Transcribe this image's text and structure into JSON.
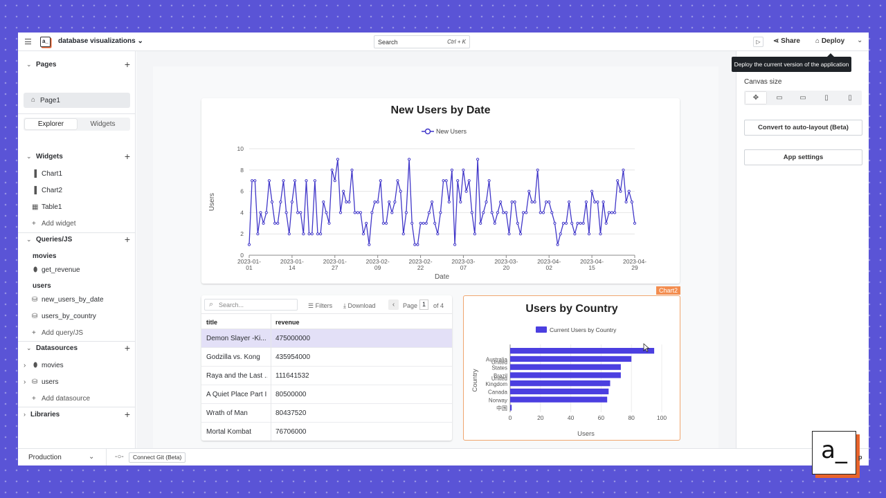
{
  "header": {
    "app_name": "database visualizations",
    "logo_text": "a_",
    "search_placeholder": "Search",
    "search_shortcut": "Ctrl + K",
    "share_label": "Share",
    "deploy_label": "Deploy"
  },
  "sidebar": {
    "pages_label": "Pages",
    "pages": [
      "Page1"
    ],
    "toggle": [
      "Explorer",
      "Widgets"
    ],
    "widgets_label": "Widgets",
    "widgets": [
      "Chart1",
      "Chart2",
      "Table1"
    ],
    "add_widget": "Add widget",
    "queries_label": "Queries/JS",
    "query_groups": [
      {
        "name": "movies",
        "items": [
          "get_revenue"
        ]
      },
      {
        "name": "users",
        "items": [
          "new_users_by_date",
          "users_by_country"
        ]
      }
    ],
    "add_query": "Add query/JS",
    "datasources_label": "Datasources",
    "datasources": [
      "movies",
      "users"
    ],
    "add_datasource": "Add datasource",
    "libraries_label": "Libraries"
  },
  "chart1": {
    "chart_data": {
      "type": "line",
      "title": "New Users by Date",
      "xlabel": "Date",
      "ylabel": "Users",
      "ylim": [
        0,
        10
      ],
      "yticks": [
        0,
        2,
        4,
        6,
        8,
        10
      ],
      "xtick_labels": [
        "2023-01-01",
        "2023-01-14",
        "2023-01-27",
        "2023-02-09",
        "2023-02-22",
        "2023-03-07",
        "2023-03-20",
        "2023-04-02",
        "2023-04-15",
        "2023-04-29"
      ],
      "legend": "top",
      "series": [
        {
          "name": "New Users",
          "color": "#3f35c8",
          "values": [
            1,
            7,
            7,
            2,
            4,
            3,
            4,
            7,
            5,
            3,
            3,
            5,
            7,
            4,
            2,
            5,
            7,
            4,
            4,
            2,
            7,
            2,
            2,
            7,
            2,
            2,
            5,
            4,
            3,
            8,
            7,
            9,
            4,
            6,
            5,
            5,
            8,
            4,
            4,
            4,
            2,
            3,
            1,
            4,
            5,
            5,
            7,
            3,
            3,
            5,
            4,
            5,
            7,
            6,
            2,
            4,
            9,
            3,
            1,
            1,
            3,
            3,
            3,
            4,
            5,
            3,
            2,
            4,
            7,
            7,
            5,
            8,
            1,
            7,
            5,
            8,
            6,
            7,
            4,
            2,
            9,
            3,
            4,
            5,
            7,
            4,
            3,
            4,
            5,
            4,
            4,
            2,
            5,
            5,
            3,
            2,
            4,
            4,
            6,
            5,
            5,
            8,
            4,
            4,
            5,
            5,
            4,
            3,
            1,
            2,
            3,
            3,
            5,
            3,
            2,
            3,
            3,
            3,
            5,
            2,
            6,
            5,
            5,
            2,
            5,
            3,
            4,
            4,
            4,
            7,
            6,
            8,
            5,
            6,
            5,
            3
          ]
        }
      ]
    }
  },
  "table": {
    "search_placeholder": "Search...",
    "filters_label": "Filters",
    "download_label": "Download",
    "page_label": "Page",
    "page_num": "1",
    "of_label": "of 4",
    "columns": [
      "title",
      "revenue"
    ],
    "rows": [
      [
        "Demon Slayer -Ki...",
        "475000000"
      ],
      [
        "Godzilla vs. Kong",
        "435954000"
      ],
      [
        "Raya and the Last ...",
        "111641532"
      ],
      [
        "A Quiet Place Part II",
        "80500000"
      ],
      [
        "Wrath of Man",
        "80437520"
      ],
      [
        "Mortal Kombat",
        "76706000"
      ]
    ]
  },
  "chart2": {
    "tag": "Chart2",
    "chart_data": {
      "type": "bar",
      "orientation": "horizontal",
      "title": "Users by Country",
      "xlabel": "Users",
      "ylabel": "Country",
      "xlim": [
        0,
        100
      ],
      "xticks": [
        0,
        20,
        40,
        60,
        80,
        100
      ],
      "legend": "top",
      "categories": [
        "",
        "Australia",
        "United States",
        "Brazil",
        "United Kingdom",
        "Canada",
        "Norway",
        "中国"
      ],
      "series": [
        {
          "name": "Current Users by Country",
          "color": "#4b3fe0",
          "values": [
            95,
            80,
            73,
            73,
            66,
            65,
            64,
            1
          ]
        }
      ]
    }
  },
  "rpanel": {
    "tooltip": "Deploy the current version of the application",
    "canvas_size_label": "Canvas size",
    "convert_label": "Convert to auto-layout (Beta)",
    "app_settings_label": "App settings"
  },
  "bottom": {
    "environment": "Production",
    "connect_git": "Connect Git (Beta)"
  },
  "badge": {
    "logo_text": "a_",
    "trailing_text": "p"
  }
}
